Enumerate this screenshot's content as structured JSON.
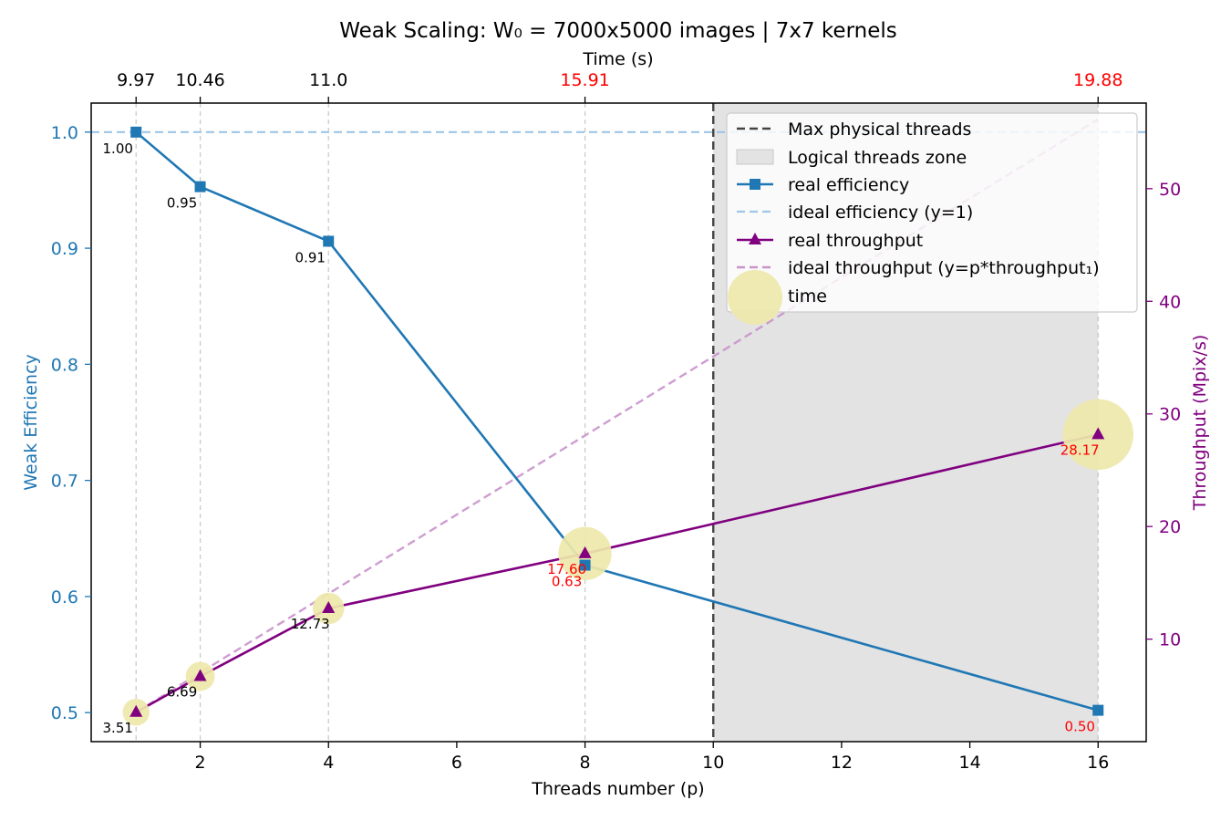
{
  "chart_data": {
    "type": "line",
    "title": "Weak Scaling: W₀ = 7000x5000 images | 7x7 kernels",
    "xlabel": "Threads number (p)",
    "ylabel_left": "Weak Efficiency",
    "ylabel_right": "Throughput (Mpix/s)",
    "top_axis_label": "Time (s)",
    "xlim": [
      0.3,
      16.75
    ],
    "ylim_left": [
      0.475,
      1.025
    ],
    "ylim_right": [
      0.9,
      57.6
    ],
    "x_ticks": [
      "2",
      "4",
      "6",
      "8",
      "10",
      "12",
      "14",
      "16"
    ],
    "y_left_ticks": [
      "0.5",
      "0.6",
      "0.7",
      "0.8",
      "0.9",
      "1.0"
    ],
    "y_right_ticks": [
      "10",
      "20",
      "30",
      "40",
      "50"
    ],
    "threads": [
      1,
      2,
      4,
      8,
      16
    ],
    "time_labels": [
      "9.97",
      "10.46",
      "11.0",
      "15.91",
      "19.88"
    ],
    "time_label_colors": [
      "#000000",
      "#000000",
      "#000000",
      "#ff0000",
      "#ff0000"
    ],
    "max_physical_threads": 10,
    "logical_zone": [
      10,
      16
    ],
    "series": [
      {
        "name": "real efficiency",
        "axis": "left",
        "x": [
          1,
          2,
          4,
          8,
          16
        ],
        "values": [
          1.0,
          0.953,
          0.906,
          0.627,
          0.502
        ],
        "color": "#1f77b4",
        "marker": "square"
      },
      {
        "name": "ideal efficiency (y=1)",
        "axis": "left",
        "values": [
          1.0
        ],
        "color": "#9fc5e8",
        "dashed": true
      },
      {
        "name": "real throughput",
        "axis": "right",
        "x": [
          1,
          2,
          4,
          8,
          16
        ],
        "values": [
          3.51,
          6.69,
          12.73,
          17.6,
          28.17
        ],
        "color": "#800080",
        "marker": "triangle"
      },
      {
        "name": "ideal throughput (y=p*throughput₁)",
        "axis": "right",
        "x": [
          1,
          16
        ],
        "values": [
          3.51,
          56.16
        ],
        "color": "#c993cc",
        "dashed": true
      },
      {
        "name": "time",
        "x": [
          1,
          2,
          4,
          8,
          16
        ],
        "values": [
          9.97,
          10.46,
          11.0,
          15.91,
          19.88
        ],
        "color": "#eee8aa",
        "marker": "bubble"
      }
    ],
    "efficiency_labels": [
      "1.00",
      "0.95",
      "0.91",
      "0.63",
      "0.50"
    ],
    "throughput_labels": [
      "3.51",
      "6.69",
      "12.73",
      "17.60",
      "28.17"
    ],
    "label_colors": [
      "#000000",
      "#000000",
      "#000000",
      "#ff0000",
      "#ff0000"
    ],
    "legend": {
      "placement": "upper right",
      "entries": [
        "Max physical threads",
        "Logical threads zone",
        "real efficiency",
        "ideal efficiency (y=1)",
        "real throughput",
        "ideal throughput (y=p*throughput₁)",
        "time"
      ]
    },
    "colors": {
      "left_axis": "#1f77b4",
      "right_axis": "#800080",
      "zone": "#e3e3e3",
      "max_line": "#444444",
      "highlight": "#ff0000"
    }
  }
}
